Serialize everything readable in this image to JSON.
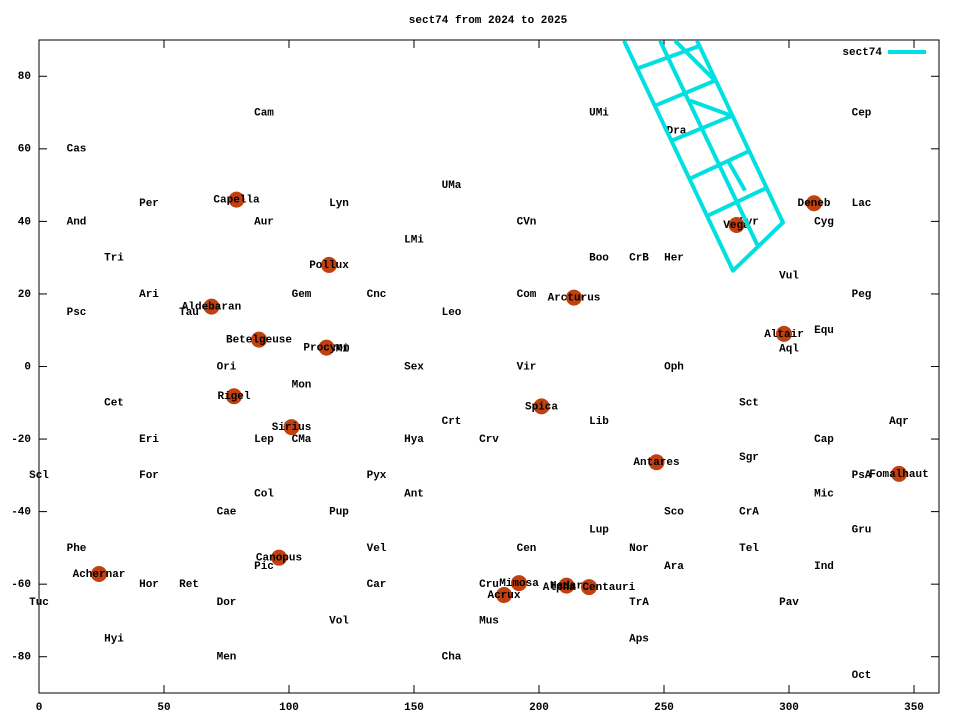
{
  "chart_data": {
    "type": "scatter",
    "title": "sect74 from 2024 to 2025",
    "xlim": [
      0,
      360
    ],
    "ylim": [
      -90,
      90
    ],
    "xticks": [
      0,
      50,
      100,
      150,
      200,
      250,
      300,
      350
    ],
    "yticks": [
      -80,
      -60,
      -40,
      -20,
      0,
      20,
      40,
      60,
      80
    ],
    "legend": "top-right",
    "series": [
      {
        "name": "sect74",
        "color": "#00e0e0",
        "x": [
          234,
          277.6,
          297.6,
          263.2,
          null,
          248.4,
          287.6,
          null,
          239.2,
          264.4,
          null,
          246.4,
          270.4,
          null,
          253.2,
          277.2,
          null,
          260.4,
          284.4,
          null,
          267.6,
          291.2,
          null,
          254.4,
          270.4,
          null,
          260.4,
          277.2,
          null,
          275.6,
          282.4
        ],
        "y": [
          89.8,
          26.4,
          39.7,
          89.8,
          null,
          89.8,
          33.1,
          null,
          82.1,
          88.4,
          null,
          71.9,
          78.8,
          null,
          62.3,
          69.1,
          null,
          51.8,
          59.5,
          null,
          41.6,
          49.3,
          null,
          89.8,
          78.8,
          null,
          73.3,
          69.1,
          null,
          56.7,
          48.5
        ]
      }
    ],
    "stars": {
      "color": "#c04010",
      "names": [
        "Capella",
        "Deneb",
        "Vega",
        "Pollux",
        "Arcturus",
        "Aldebaran",
        "Betelgeuse",
        "Procyon",
        "Altair",
        "Rigel",
        "Spica",
        "Sirius",
        "Antares",
        "Fomalhaut",
        "Canopus",
        "Achernar",
        "Mimosa",
        "Hadar",
        "Alpha Centauri",
        "Acrux"
      ],
      "x": [
        79,
        310,
        279,
        116,
        214,
        69,
        88,
        115,
        298,
        78,
        201,
        101,
        247,
        344,
        96,
        24,
        192,
        211,
        220,
        186
      ],
      "y": [
        46,
        45,
        39,
        28,
        19,
        16.5,
        7.4,
        5.2,
        9,
        -8.2,
        -11,
        -16.7,
        -26.4,
        -29.6,
        -52.7,
        -57.2,
        -59.7,
        -60.4,
        -60.8,
        -63
      ]
    },
    "constellations": {
      "labels": [
        "Cam",
        "UMi",
        "Cep",
        "Cas",
        "Dra",
        "UMa",
        "Per",
        "Lyn",
        "Lac",
        "And",
        "Aur",
        "CVn",
        "Cyg",
        "Lyr",
        "LMi",
        "Tri",
        "Boo",
        "CrB",
        "Her",
        "Vul",
        "Ari",
        "Gem",
        "Cnc",
        "Com",
        "Peg",
        "Psc",
        "Tau",
        "Leo",
        "Equ",
        "Aql",
        "CMi",
        "Ori",
        "Sex",
        "Vir",
        "Oph",
        "Mon",
        "Cet",
        "Sct",
        "Crt",
        "Lib",
        "Aqr",
        "Eri",
        "Lep",
        "CMa",
        "Hya",
        "Crv",
        "Cap",
        "Sgr",
        "Scl",
        "For",
        "Pyx",
        "PsA",
        "Col",
        "Ant",
        "Mic",
        "Cae",
        "Pup",
        "Sco",
        "CrA",
        "Lup",
        "Gru",
        "Phe",
        "Vel",
        "Cen",
        "Nor",
        "Tel",
        "Pic",
        "Ara",
        "Ind",
        "Hor",
        "Ret",
        "Car",
        "Cru",
        "Tuc",
        "Dor",
        "TrA",
        "Pav",
        "Mus",
        "Vol",
        "Hyi",
        "Aps",
        "Men",
        "Cha",
        "Oct"
      ],
      "x": [
        90,
        224,
        329,
        15,
        255,
        165,
        44,
        120,
        329,
        15,
        90,
        195,
        314,
        284,
        150,
        30,
        224,
        240,
        254,
        300,
        44,
        105,
        135,
        195,
        329,
        15,
        60,
        165,
        314,
        300,
        120,
        75,
        150,
        195,
        254,
        105,
        30,
        284,
        165,
        224,
        344,
        44,
        90,
        105,
        150,
        180,
        314,
        284,
        0,
        44,
        135,
        329,
        90,
        150,
        314,
        75,
        120,
        254,
        284,
        224,
        329,
        15,
        135,
        195,
        240,
        284,
        90,
        254,
        314,
        44,
        60,
        135,
        180,
        0,
        75,
        240,
        300,
        180,
        120,
        30,
        240,
        75,
        165,
        329
      ],
      "y": [
        70,
        70,
        70,
        60,
        65,
        50,
        45,
        45,
        45,
        40,
        40,
        40,
        40,
        40,
        35,
        30,
        30,
        30,
        30,
        25,
        20,
        20,
        20,
        20,
        20,
        15,
        15,
        15,
        10,
        5,
        5,
        0,
        0,
        0,
        0,
        -5,
        -10,
        -10,
        -15,
        -15,
        -15,
        -20,
        -20,
        -20,
        -20,
        -20,
        -20,
        -25,
        -30,
        -30,
        -30,
        -30,
        -35,
        -35,
        -35,
        -40,
        -40,
        -40,
        -40,
        -45,
        -45,
        -50,
        -50,
        -50,
        -50,
        -50,
        -55,
        -55,
        -55,
        -60,
        -60,
        -60,
        -60,
        -65,
        -65,
        -65,
        -65,
        -70,
        -70,
        -75,
        -75,
        -80,
        -80,
        -85
      ]
    }
  }
}
